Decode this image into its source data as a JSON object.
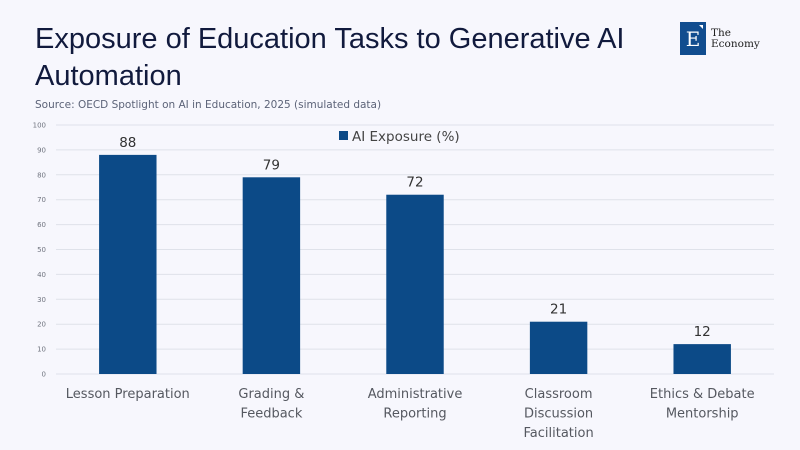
{
  "header": {
    "title": "Exposure of Education Tasks to Generative AI Automation",
    "source": "Source: OECD Spotlight on AI in Education, 2025 (simulated data)"
  },
  "logo": {
    "letter": "E",
    "line1": "The",
    "line2": "Economy"
  },
  "colors": {
    "bar": "#0c4a87",
    "grid": "#dfe2ea",
    "background": "#f7f7fd"
  },
  "chart_data": {
    "type": "bar",
    "title": "Exposure of Education Tasks to Generative AI Automation",
    "xlabel": "",
    "ylabel": "",
    "categories": [
      [
        "Lesson Preparation"
      ],
      [
        "Grading &",
        "Feedback"
      ],
      [
        "Administrative",
        "Reporting"
      ],
      [
        "Classroom",
        "Discussion",
        "Facilitation"
      ],
      [
        "Ethics & Debate",
        "Mentorship"
      ]
    ],
    "series": [
      {
        "name": "AI Exposure (%)",
        "values": [
          88,
          79,
          72,
          21,
          12
        ]
      }
    ],
    "ylim": [
      0,
      100
    ],
    "yticks": [
      0,
      10,
      20,
      30,
      40,
      50,
      60,
      70,
      80,
      90,
      100
    ],
    "grid": true,
    "legend": "top-center",
    "data_labels": true
  }
}
